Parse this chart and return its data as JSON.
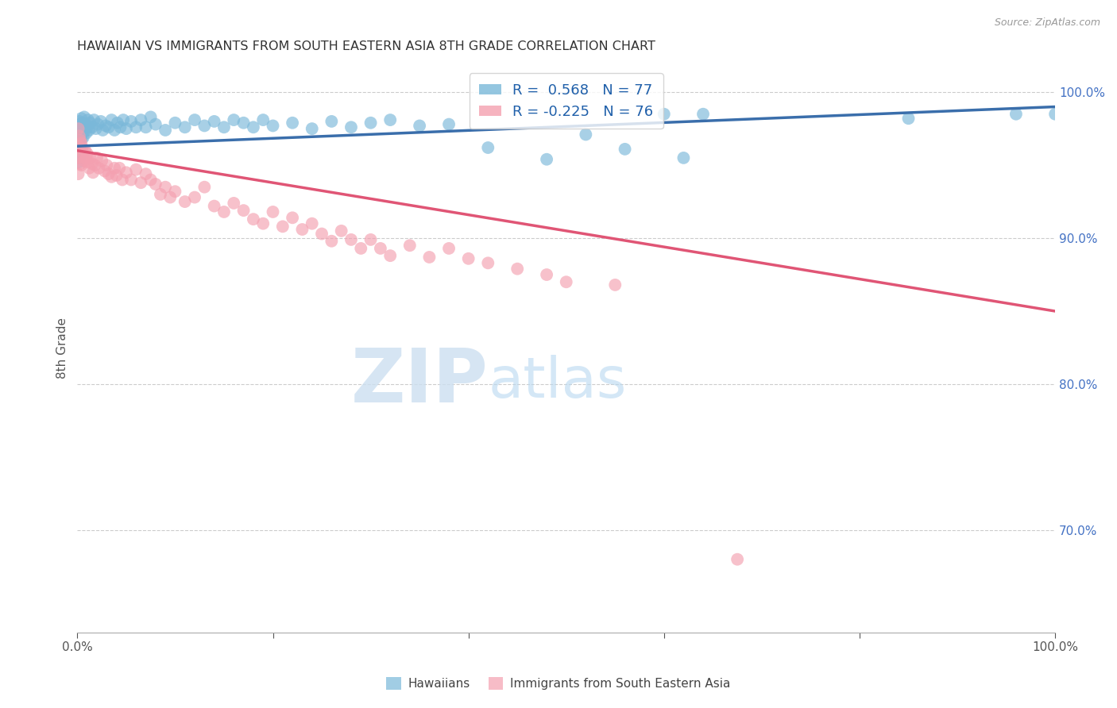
{
  "title": "HAWAIIAN VS IMMIGRANTS FROM SOUTH EASTERN ASIA 8TH GRADE CORRELATION CHART",
  "source": "Source: ZipAtlas.com",
  "ylabel": "8th Grade",
  "ytick_labels": [
    "100.0%",
    "90.0%",
    "80.0%",
    "70.0%"
  ],
  "ytick_values": [
    1.0,
    0.9,
    0.8,
    0.7
  ],
  "legend_label_blue": "Hawaiians",
  "legend_label_pink": "Immigrants from South Eastern Asia",
  "R_blue": 0.568,
  "N_blue": 77,
  "R_pink": -0.225,
  "N_pink": 76,
  "blue_color": "#7ab8d9",
  "pink_color": "#f4a0b0",
  "blue_line_color": "#3a6eab",
  "pink_line_color": "#e05575",
  "blue_dots": [
    [
      0.001,
      0.976
    ],
    [
      0.001,
      0.971
    ],
    [
      0.001,
      0.964
    ],
    [
      0.002,
      0.98
    ],
    [
      0.002,
      0.973
    ],
    [
      0.002,
      0.966
    ],
    [
      0.002,
      0.96
    ],
    [
      0.003,
      0.978
    ],
    [
      0.003,
      0.97
    ],
    [
      0.003,
      0.963
    ],
    [
      0.004,
      0.982
    ],
    [
      0.004,
      0.975
    ],
    [
      0.004,
      0.968
    ],
    [
      0.005,
      0.979
    ],
    [
      0.005,
      0.972
    ],
    [
      0.006,
      0.976
    ],
    [
      0.006,
      0.969
    ],
    [
      0.007,
      0.983
    ],
    [
      0.007,
      0.973
    ],
    [
      0.008,
      0.978
    ],
    [
      0.009,
      0.972
    ],
    [
      0.01,
      0.976
    ],
    [
      0.011,
      0.981
    ],
    [
      0.012,
      0.974
    ],
    [
      0.013,
      0.979
    ],
    [
      0.015,
      0.976
    ],
    [
      0.017,
      0.981
    ],
    [
      0.019,
      0.975
    ],
    [
      0.021,
      0.978
    ],
    [
      0.024,
      0.98
    ],
    [
      0.026,
      0.974
    ],
    [
      0.029,
      0.977
    ],
    [
      0.032,
      0.976
    ],
    [
      0.035,
      0.981
    ],
    [
      0.038,
      0.974
    ],
    [
      0.041,
      0.979
    ],
    [
      0.044,
      0.976
    ],
    [
      0.047,
      0.981
    ],
    [
      0.05,
      0.975
    ],
    [
      0.055,
      0.98
    ],
    [
      0.06,
      0.976
    ],
    [
      0.065,
      0.981
    ],
    [
      0.07,
      0.976
    ],
    [
      0.075,
      0.983
    ],
    [
      0.08,
      0.978
    ],
    [
      0.09,
      0.974
    ],
    [
      0.1,
      0.979
    ],
    [
      0.11,
      0.976
    ],
    [
      0.12,
      0.981
    ],
    [
      0.13,
      0.977
    ],
    [
      0.14,
      0.98
    ],
    [
      0.15,
      0.976
    ],
    [
      0.16,
      0.981
    ],
    [
      0.17,
      0.979
    ],
    [
      0.18,
      0.976
    ],
    [
      0.19,
      0.981
    ],
    [
      0.2,
      0.977
    ],
    [
      0.22,
      0.979
    ],
    [
      0.24,
      0.975
    ],
    [
      0.26,
      0.98
    ],
    [
      0.28,
      0.976
    ],
    [
      0.3,
      0.979
    ],
    [
      0.32,
      0.981
    ],
    [
      0.35,
      0.977
    ],
    [
      0.38,
      0.978
    ],
    [
      0.42,
      0.962
    ],
    [
      0.48,
      0.954
    ],
    [
      0.52,
      0.971
    ],
    [
      0.56,
      0.961
    ],
    [
      0.6,
      0.985
    ],
    [
      0.62,
      0.955
    ],
    [
      0.64,
      0.985
    ],
    [
      0.85,
      0.982
    ],
    [
      0.96,
      0.985
    ],
    [
      1.0,
      0.985
    ],
    [
      0.001,
      0.958
    ],
    [
      0.001,
      0.952
    ],
    [
      0.002,
      0.955
    ]
  ],
  "pink_dots": [
    [
      0.001,
      0.975
    ],
    [
      0.001,
      0.963
    ],
    [
      0.001,
      0.955
    ],
    [
      0.001,
      0.944
    ],
    [
      0.002,
      0.97
    ],
    [
      0.002,
      0.958
    ],
    [
      0.003,
      0.967
    ],
    [
      0.003,
      0.951
    ],
    [
      0.004,
      0.965
    ],
    [
      0.004,
      0.95
    ],
    [
      0.005,
      0.962
    ],
    [
      0.006,
      0.958
    ],
    [
      0.007,
      0.953
    ],
    [
      0.008,
      0.96
    ],
    [
      0.009,
      0.955
    ],
    [
      0.01,
      0.958
    ],
    [
      0.011,
      0.952
    ],
    [
      0.012,
      0.948
    ],
    [
      0.013,
      0.955
    ],
    [
      0.015,
      0.951
    ],
    [
      0.016,
      0.945
    ],
    [
      0.018,
      0.95
    ],
    [
      0.02,
      0.955
    ],
    [
      0.022,
      0.948
    ],
    [
      0.025,
      0.953
    ],
    [
      0.028,
      0.946
    ],
    [
      0.03,
      0.95
    ],
    [
      0.032,
      0.944
    ],
    [
      0.035,
      0.942
    ],
    [
      0.038,
      0.948
    ],
    [
      0.04,
      0.943
    ],
    [
      0.043,
      0.948
    ],
    [
      0.046,
      0.94
    ],
    [
      0.05,
      0.945
    ],
    [
      0.055,
      0.94
    ],
    [
      0.06,
      0.947
    ],
    [
      0.065,
      0.938
    ],
    [
      0.07,
      0.944
    ],
    [
      0.075,
      0.94
    ],
    [
      0.08,
      0.937
    ],
    [
      0.085,
      0.93
    ],
    [
      0.09,
      0.935
    ],
    [
      0.095,
      0.928
    ],
    [
      0.1,
      0.932
    ],
    [
      0.11,
      0.925
    ],
    [
      0.12,
      0.928
    ],
    [
      0.13,
      0.935
    ],
    [
      0.14,
      0.922
    ],
    [
      0.15,
      0.918
    ],
    [
      0.16,
      0.924
    ],
    [
      0.17,
      0.919
    ],
    [
      0.18,
      0.913
    ],
    [
      0.19,
      0.91
    ],
    [
      0.2,
      0.918
    ],
    [
      0.21,
      0.908
    ],
    [
      0.22,
      0.914
    ],
    [
      0.23,
      0.906
    ],
    [
      0.24,
      0.91
    ],
    [
      0.25,
      0.903
    ],
    [
      0.26,
      0.898
    ],
    [
      0.27,
      0.905
    ],
    [
      0.28,
      0.899
    ],
    [
      0.29,
      0.893
    ],
    [
      0.3,
      0.899
    ],
    [
      0.31,
      0.893
    ],
    [
      0.32,
      0.888
    ],
    [
      0.34,
      0.895
    ],
    [
      0.36,
      0.887
    ],
    [
      0.38,
      0.893
    ],
    [
      0.4,
      0.886
    ],
    [
      0.42,
      0.883
    ],
    [
      0.45,
      0.879
    ],
    [
      0.48,
      0.875
    ],
    [
      0.5,
      0.87
    ],
    [
      0.55,
      0.868
    ],
    [
      0.675,
      0.68
    ]
  ],
  "blue_trend": {
    "x_start": 0.0,
    "y_start": 0.963,
    "x_end": 1.0,
    "y_end": 0.99
  },
  "pink_trend": {
    "x_start": 0.0,
    "y_start": 0.96,
    "x_end": 1.0,
    "y_end": 0.85
  },
  "xlim": [
    0.0,
    1.0
  ],
  "ylim": [
    0.63,
    1.02
  ],
  "background_color": "#ffffff",
  "grid_color": "#cccccc",
  "title_color": "#333333",
  "right_axis_tick_color": "#4472c4"
}
